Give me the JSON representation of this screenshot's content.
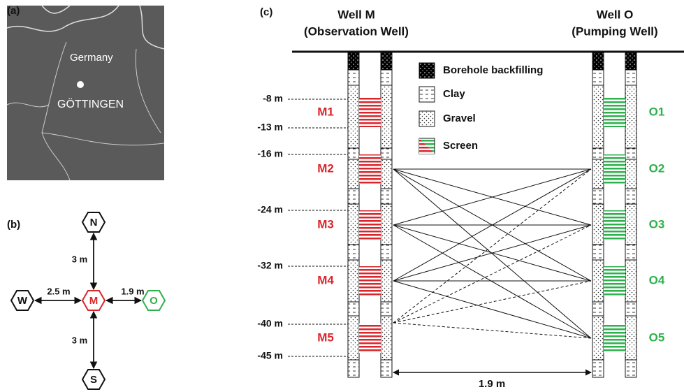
{
  "panels": {
    "a": "(a)",
    "b": "(b)",
    "c": "(c)"
  },
  "map": {
    "country": "Germany",
    "city": "GÖTTINGEN"
  },
  "layout": {
    "nodes": {
      "north": "N",
      "west": "W",
      "center": "M",
      "east": "O",
      "south": "S"
    },
    "distances": {
      "north": "3 m",
      "west": "2.5 m",
      "east": "1.9 m",
      "south": "3 m"
    }
  },
  "wells": {
    "m": {
      "title": "Well M",
      "subtitle": "(Observation Well)",
      "screens": [
        "M1",
        "M2",
        "M3",
        "M4",
        "M5"
      ]
    },
    "o": {
      "title": "Well O",
      "subtitle": "(Pumping Well)",
      "screens": [
        "O1",
        "O2",
        "O3",
        "O4",
        "O5"
      ]
    }
  },
  "depths": [
    "-8 m",
    "-13 m",
    "-16 m",
    "-24 m",
    "-32 m",
    "-40 m",
    "-45 m"
  ],
  "legend": [
    "Borehole backfilling",
    "Clay",
    "Gravel",
    "Screen"
  ],
  "spacing": "1.9 m"
}
